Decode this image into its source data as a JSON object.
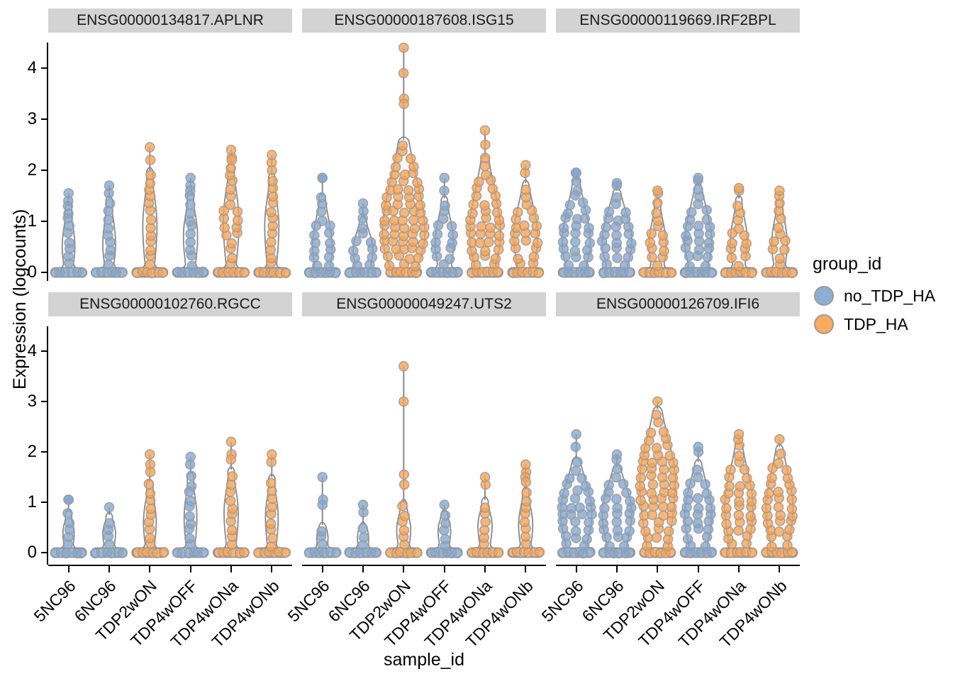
{
  "axes": {
    "y_title": "Expression (logcounts)",
    "x_title": "sample_id",
    "y_ticks": [
      "0",
      "1",
      "2",
      "3",
      "4"
    ],
    "x_categories": [
      "5NC96",
      "6NC96",
      "TDP2wON",
      "TDP4wOFF",
      "TDP4wONa",
      "TDP4wONb"
    ]
  },
  "legend": {
    "title": "group_id",
    "items": [
      {
        "label": "no_TDP_HA",
        "color": "#7FA6D2"
      },
      {
        "label": "TDP_HA",
        "color": "#FBA24A"
      }
    ]
  },
  "colors": {
    "strip_bg": "#D3D3D3",
    "axis": "#000000",
    "violin_outline": "#8A8A8A",
    "point_stroke": "#9A9A9A",
    "violin_fill": "#F4F4F4"
  },
  "chart_data": {
    "type": "violin",
    "facet_by": "gene",
    "x_field": "sample_id",
    "y_field": "Expression (logcounts)",
    "ylim": [
      0,
      4.5
    ],
    "group_field": "group_id",
    "groups": {
      "5NC96": "no_TDP_HA",
      "6NC96": "no_TDP_HA",
      "TDP2wON": "TDP_HA",
      "TDP4wOFF": "no_TDP_HA",
      "TDP4wONa": "TDP_HA",
      "TDP4wONb": "TDP_HA"
    },
    "facets": [
      {
        "title": "ENSG00000134817.APLNR",
        "violins": [
          {
            "sample": "5NC96",
            "group": "no_TDP_HA",
            "max": 1.55,
            "dense_top": 1.3,
            "bulge_center": 0.5,
            "bulge_halfwidth": 9,
            "outliers": [
              1.4,
              1.3
            ]
          },
          {
            "sample": "6NC96",
            "group": "no_TDP_HA",
            "max": 1.7,
            "dense_top": 1.45,
            "bulge_center": 0.55,
            "bulge_halfwidth": 9,
            "outliers": [
              1.55
            ]
          },
          {
            "sample": "TDP2wON",
            "group": "TDP_HA",
            "max": 2.45,
            "dense_top": 2.0,
            "bulge_center": 0.9,
            "bulge_halfwidth": 10,
            "outliers": [
              2.2
            ]
          },
          {
            "sample": "TDP4wOFF",
            "group": "no_TDP_HA",
            "max": 1.85,
            "dense_top": 1.55,
            "bulge_center": 0.7,
            "bulge_halfwidth": 10,
            "outliers": [
              1.7,
              1.6
            ]
          },
          {
            "sample": "TDP4wONa",
            "group": "TDP_HA",
            "max": 2.4,
            "dense_top": 2.1,
            "bulge_center": 1.0,
            "bulge_halfwidth": 11,
            "outliers": [
              2.25,
              2.2
            ]
          },
          {
            "sample": "TDP4wONb",
            "group": "TDP_HA",
            "max": 2.3,
            "dense_top": 1.9,
            "bulge_center": 0.9,
            "bulge_halfwidth": 10,
            "outliers": [
              2.15,
              2.0
            ]
          }
        ]
      },
      {
        "title": "ENSG00000187608.ISG15",
        "violins": [
          {
            "sample": "5NC96",
            "group": "no_TDP_HA",
            "max": 1.85,
            "dense_top": 1.5,
            "bulge_center": 0.45,
            "bulge_halfwidth": 14,
            "outliers": [
              1.85
            ]
          },
          {
            "sample": "6NC96",
            "group": "no_TDP_HA",
            "max": 1.35,
            "dense_top": 1.05,
            "bulge_center": 0.45,
            "bulge_halfwidth": 14,
            "outliers": [
              1.2
            ]
          },
          {
            "sample": "TDP2wON",
            "group": "TDP_HA",
            "max": 4.4,
            "dense_top": 2.6,
            "bulge_center": 0.75,
            "bulge_halfwidth": 30,
            "outliers": [
              3.9,
              3.4,
              3.3
            ]
          },
          {
            "sample": "TDP4wOFF",
            "group": "no_TDP_HA",
            "max": 1.85,
            "dense_top": 1.45,
            "bulge_center": 0.55,
            "bulge_halfwidth": 13,
            "outliers": [
              1.6
            ]
          },
          {
            "sample": "TDP4wONa",
            "group": "TDP_HA",
            "max": 2.78,
            "dense_top": 2.25,
            "bulge_center": 0.75,
            "bulge_halfwidth": 22,
            "outliers": [
              2.5
            ]
          },
          {
            "sample": "TDP4wONb",
            "group": "TDP_HA",
            "max": 2.1,
            "dense_top": 1.75,
            "bulge_center": 0.7,
            "bulge_halfwidth": 17,
            "outliers": [
              1.95
            ]
          }
        ]
      },
      {
        "title": "ENSG00000119669.IRF2BPL",
        "violins": [
          {
            "sample": "5NC96",
            "group": "no_TDP_HA",
            "max": 1.95,
            "dense_top": 1.8,
            "bulge_center": 0.55,
            "bulge_halfwidth": 20,
            "outliers": [
              1.95
            ]
          },
          {
            "sample": "6NC96",
            "group": "no_TDP_HA",
            "max": 1.75,
            "dense_top": 1.6,
            "bulge_center": 0.6,
            "bulge_halfwidth": 21,
            "outliers": [
              1.7
            ]
          },
          {
            "sample": "TDP2wON",
            "group": "TDP_HA",
            "max": 1.6,
            "dense_top": 1.4,
            "bulge_center": 0.5,
            "bulge_halfwidth": 12,
            "outliers": [
              1.55
            ]
          },
          {
            "sample": "TDP4wOFF",
            "group": "no_TDP_HA",
            "max": 1.85,
            "dense_top": 1.7,
            "bulge_center": 0.6,
            "bulge_halfwidth": 19,
            "outliers": [
              1.8
            ]
          },
          {
            "sample": "TDP4wONa",
            "group": "TDP_HA",
            "max": 1.65,
            "dense_top": 1.45,
            "bulge_center": 0.6,
            "bulge_halfwidth": 12,
            "outliers": [
              1.6
            ]
          },
          {
            "sample": "TDP4wONb",
            "group": "TDP_HA",
            "max": 1.6,
            "dense_top": 1.4,
            "bulge_center": 0.55,
            "bulge_halfwidth": 11,
            "outliers": [
              1.5
            ]
          }
        ]
      },
      {
        "title": "ENSG00000102760.RGCC",
        "violins": [
          {
            "sample": "5NC96",
            "group": "no_TDP_HA",
            "max": 1.05,
            "dense_top": 0.8,
            "bulge_center": 0.4,
            "bulge_halfwidth": 8,
            "outliers": [
              1.05
            ]
          },
          {
            "sample": "6NC96",
            "group": "no_TDP_HA",
            "max": 0.9,
            "dense_top": 0.75,
            "bulge_center": 0.4,
            "bulge_halfwidth": 9,
            "outliers": []
          },
          {
            "sample": "TDP2wON",
            "group": "TDP_HA",
            "max": 1.95,
            "dense_top": 1.4,
            "bulge_center": 0.6,
            "bulge_halfwidth": 9,
            "outliers": [
              1.75,
              1.6
            ]
          },
          {
            "sample": "TDP4wOFF",
            "group": "no_TDP_HA",
            "max": 1.9,
            "dense_top": 1.55,
            "bulge_center": 0.7,
            "bulge_halfwidth": 9,
            "outliers": [
              1.75
            ]
          },
          {
            "sample": "TDP4wONa",
            "group": "TDP_HA",
            "max": 2.2,
            "dense_top": 1.65,
            "bulge_center": 0.8,
            "bulge_halfwidth": 10,
            "outliers": [
              1.95,
              1.85
            ]
          },
          {
            "sample": "TDP4wONb",
            "group": "TDP_HA",
            "max": 1.95,
            "dense_top": 1.5,
            "bulge_center": 0.7,
            "bulge_halfwidth": 9,
            "outliers": [
              1.8
            ]
          }
        ]
      },
      {
        "title": "ENSG00000049247.UTS2",
        "violins": [
          {
            "sample": "5NC96",
            "group": "no_TDP_HA",
            "max": 1.5,
            "dense_top": 0.55,
            "bulge_center": 0.3,
            "bulge_halfwidth": 8,
            "outliers": [
              1.05,
              0.95
            ]
          },
          {
            "sample": "6NC96",
            "group": "no_TDP_HA",
            "max": 0.95,
            "dense_top": 0.55,
            "bulge_center": 0.3,
            "bulge_halfwidth": 8,
            "outliers": [
              0.8
            ]
          },
          {
            "sample": "TDP2wON",
            "group": "TDP_HA",
            "max": 3.7,
            "dense_top": 1.0,
            "bulge_center": 0.45,
            "bulge_halfwidth": 10,
            "outliers": [
              3.0,
              1.55,
              1.35
            ]
          },
          {
            "sample": "TDP4wOFF",
            "group": "no_TDP_HA",
            "max": 0.95,
            "dense_top": 0.8,
            "bulge_center": 0.45,
            "bulge_halfwidth": 9,
            "outliers": []
          },
          {
            "sample": "TDP4wONa",
            "group": "TDP_HA",
            "max": 1.5,
            "dense_top": 1.05,
            "bulge_center": 0.55,
            "bulge_halfwidth": 10,
            "outliers": [
              1.35
            ]
          },
          {
            "sample": "TDP4wONb",
            "group": "TDP_HA",
            "max": 1.75,
            "dense_top": 1.25,
            "bulge_center": 0.55,
            "bulge_halfwidth": 10,
            "outliers": [
              1.6,
              1.5,
              1.4
            ]
          }
        ]
      },
      {
        "title": "ENSG00000126709.IFI6",
        "violins": [
          {
            "sample": "5NC96",
            "group": "no_TDP_HA",
            "max": 2.35,
            "dense_top": 1.85,
            "bulge_center": 0.8,
            "bulge_halfwidth": 22,
            "outliers": [
              2.1
            ]
          },
          {
            "sample": "6NC96",
            "group": "no_TDP_HA",
            "max": 1.95,
            "dense_top": 1.7,
            "bulge_center": 0.8,
            "bulge_halfwidth": 21,
            "outliers": [
              1.85
            ]
          },
          {
            "sample": "TDP2wON",
            "group": "TDP_HA",
            "max": 3.0,
            "dense_top": 2.85,
            "bulge_center": 1.4,
            "bulge_halfwidth": 25,
            "outliers": []
          },
          {
            "sample": "TDP4wOFF",
            "group": "no_TDP_HA",
            "max": 2.1,
            "dense_top": 1.8,
            "bulge_center": 0.75,
            "bulge_halfwidth": 19,
            "outliers": [
              2.0
            ]
          },
          {
            "sample": "TDP4wONa",
            "group": "TDP_HA",
            "max": 2.35,
            "dense_top": 2.15,
            "bulge_center": 0.9,
            "bulge_halfwidth": 20,
            "outliers": [
              2.25
            ]
          },
          {
            "sample": "TDP4wONb",
            "group": "TDP_HA",
            "max": 2.25,
            "dense_top": 2.1,
            "bulge_center": 0.9,
            "bulge_halfwidth": 19,
            "outliers": []
          }
        ]
      }
    ]
  }
}
